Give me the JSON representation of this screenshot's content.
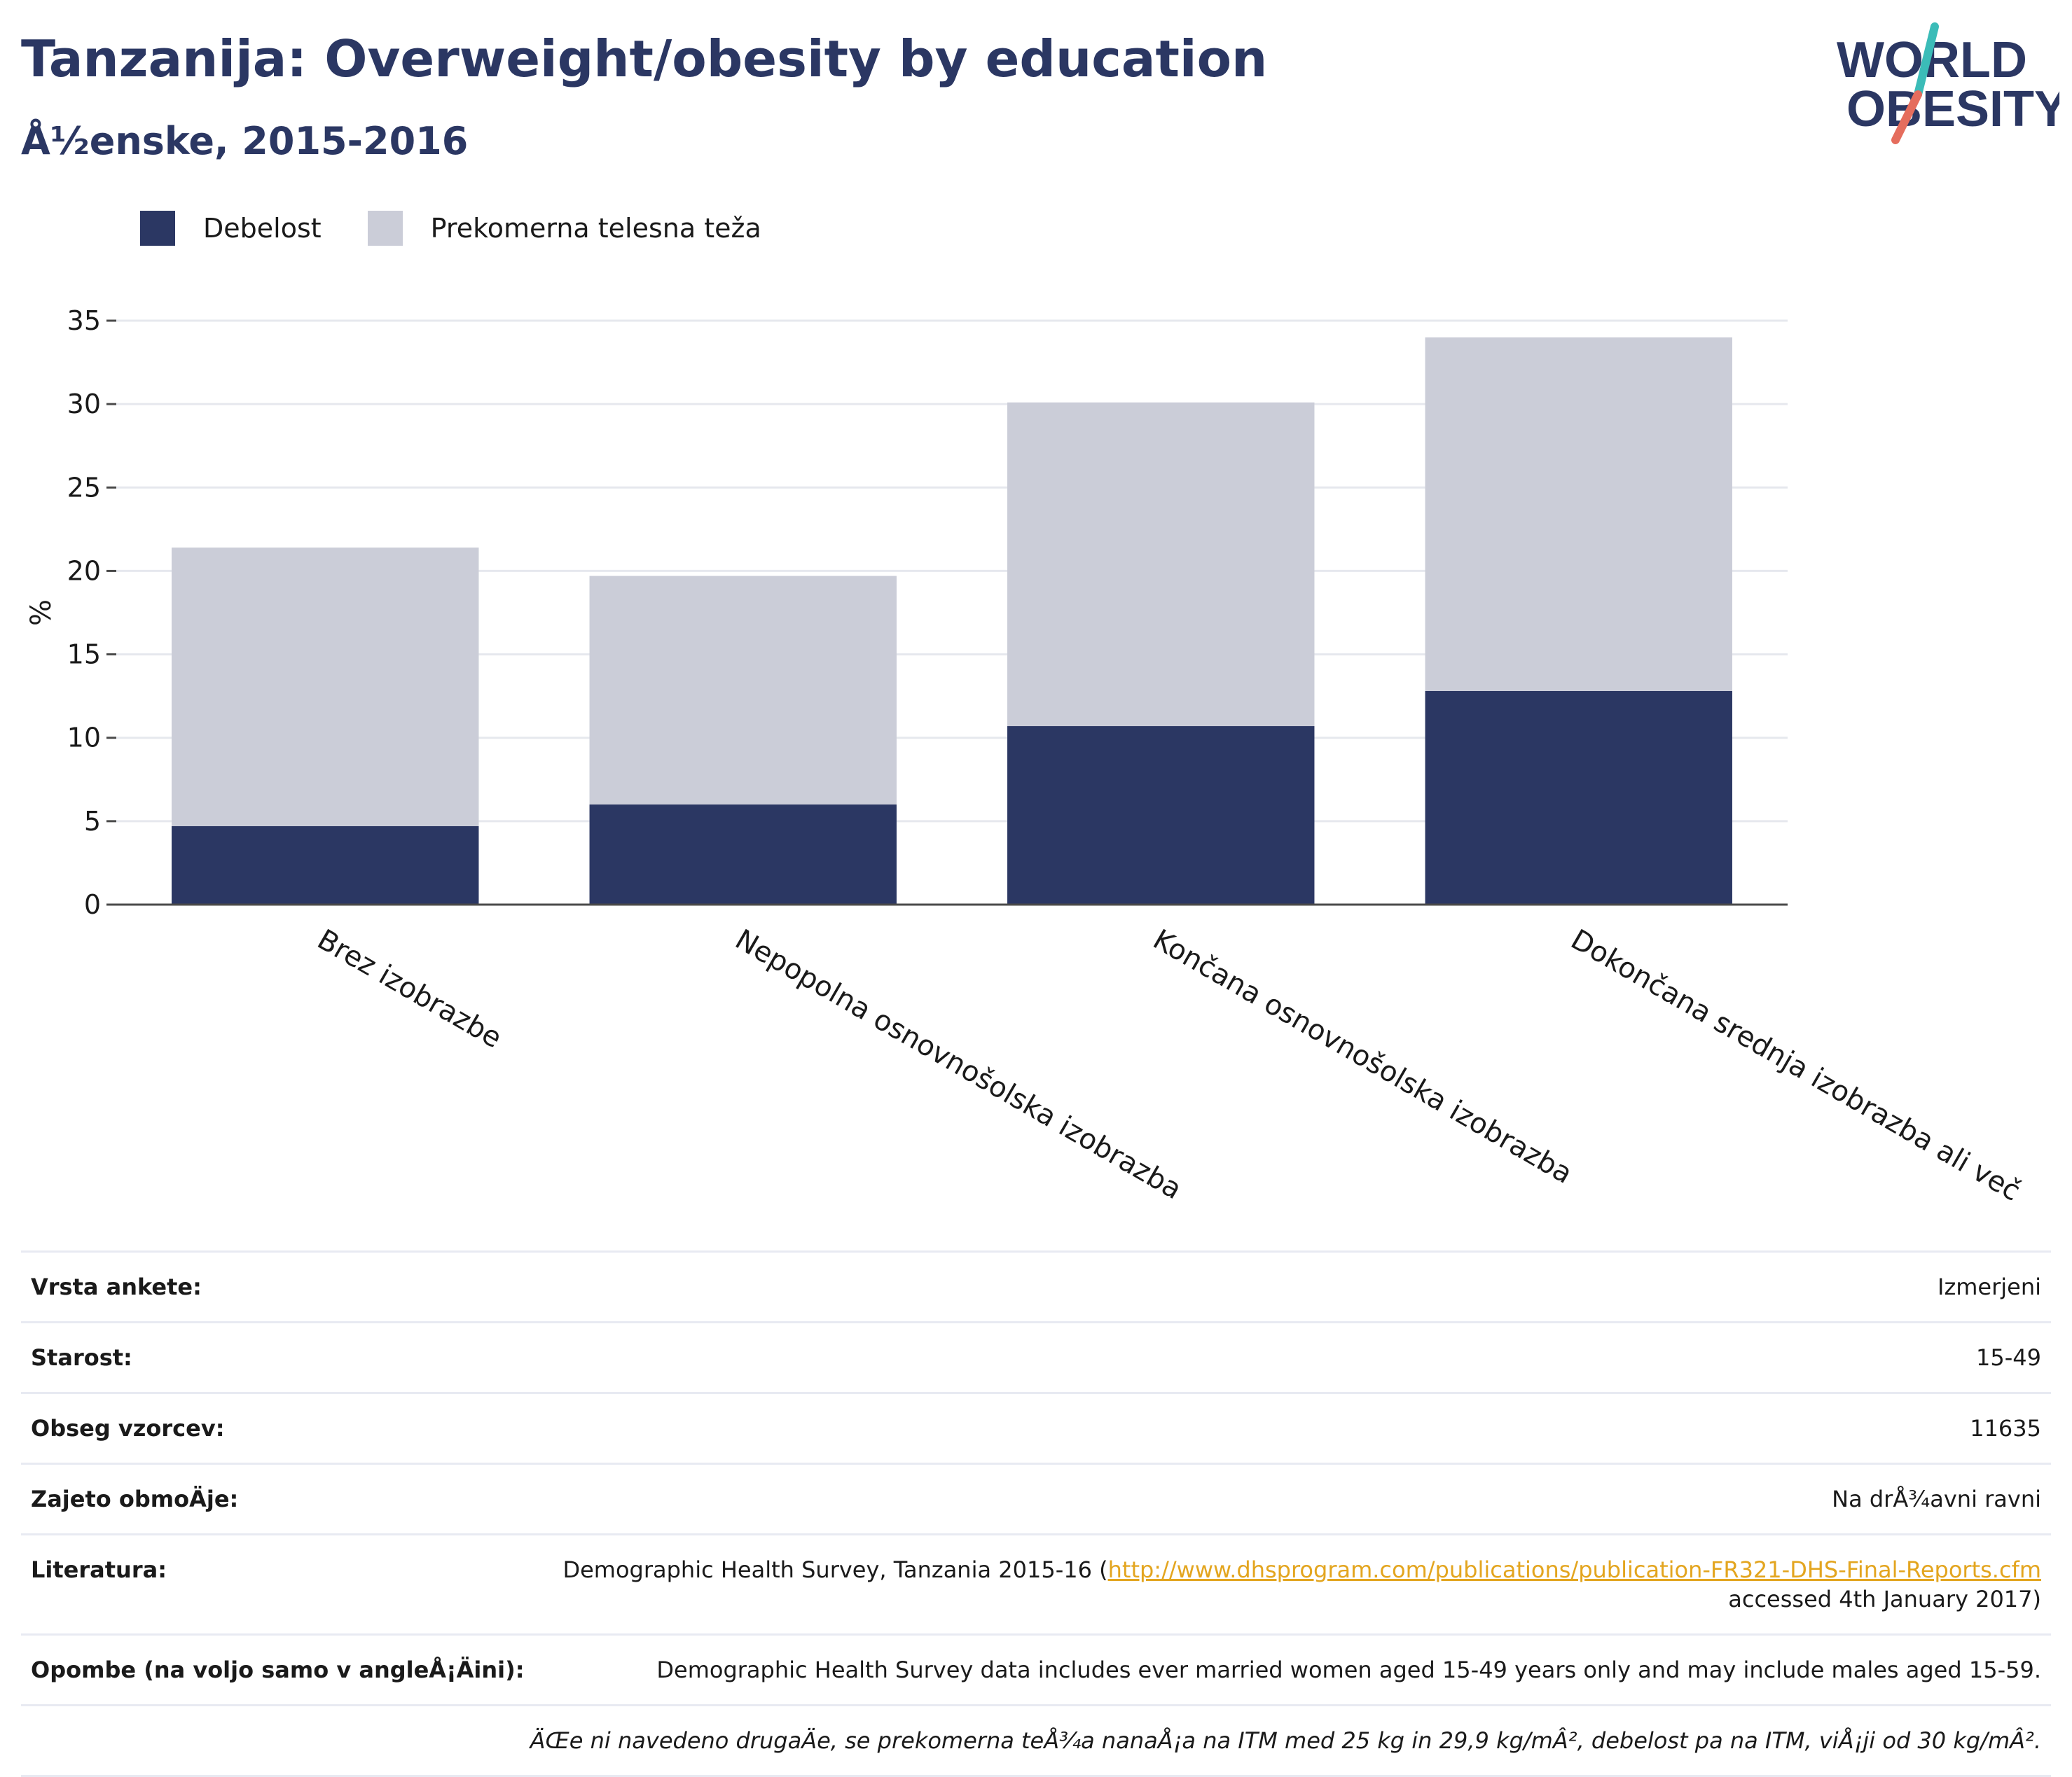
{
  "title": "Tanzanija: Overweight/obesity by education",
  "subtitle": "Å½enske, 2015-2016",
  "logo": {
    "line1": "WORLD",
    "line2": "OBESITY"
  },
  "colors": {
    "obesity": "#2b3763",
    "overweight": "#cbcdd8",
    "title": "#2b3763",
    "link": "#e3a51f"
  },
  "legend": [
    {
      "label": "Debelost",
      "color": "#2b3763"
    },
    {
      "label": "Prekomerna telesna teža",
      "color": "#cbcdd8"
    }
  ],
  "chart_data": {
    "type": "bar",
    "stacked": true,
    "categories": [
      "Brez izobrazbe",
      "Nepopolna osnovnošolska izobrazba",
      "Končana osnovnošolska izobrazba",
      "Dokončana srednja izobrazba ali več"
    ],
    "series": [
      {
        "name": "Debelost",
        "color": "#2b3763",
        "values": [
          4.7,
          6.0,
          10.7,
          12.8
        ]
      },
      {
        "name": "Prekomerna telesna teža",
        "color": "#cbcdd8",
        "values": [
          16.7,
          13.7,
          19.4,
          21.2
        ]
      }
    ],
    "ylabel": "%",
    "ylim": [
      0,
      35
    ],
    "yticks": [
      0,
      5,
      10,
      15,
      20,
      25,
      30,
      35
    ],
    "grid": true,
    "legend_position": "top-left"
  },
  "info": {
    "rows": [
      {
        "key": "Vrsta ankete:",
        "value": "Izmerjeni"
      },
      {
        "key": "Starost:",
        "value": "15-49"
      },
      {
        "key": "Obseg vzorcev:",
        "value": "11635"
      },
      {
        "key": "Zajeto obmoÄ\u001dje:",
        "value": "Na drÅ¾avni ravni"
      }
    ],
    "literature": {
      "key": "Literatura:",
      "prefix": "Demographic Health Survey, Tanzania 2015-16 (",
      "link": "http://www.dhsprogram.com/publications/publication-FR321-DHS-Final-Reports.cfm",
      "suffix": "accessed 4th January 2017)"
    },
    "notes": {
      "key": "Opombe (na voljo samo v angleÅ¡Ä\u001dini):",
      "value": "Demographic Health Survey data includes ever married women aged 15-49 years only and may include males aged 15-59."
    },
    "footnote": "ÄŒe ni navedeno drugaÄ\u001de, se prekomerna teÅ¾a nanaÅ¡a na ITM med 25 kg in 29,9 kg/mÂ², debelost pa na ITM, viÅ¡ji od 30 kg/mÂ²."
  }
}
